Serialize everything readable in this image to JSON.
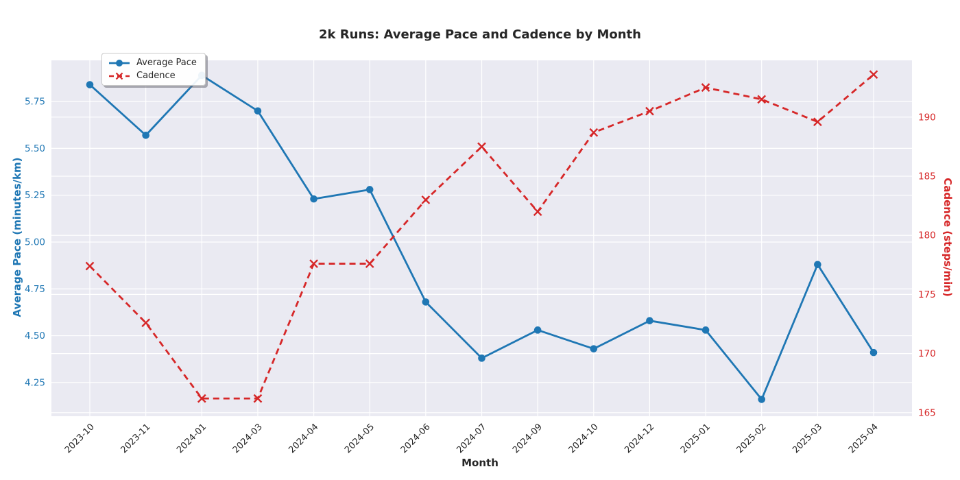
{
  "chart": {
    "title": "2k Runs: Average Pace and Cadence by Month",
    "xlabel": "Month",
    "ylabel_left": "Average Pace (minutes/km)",
    "ylabel_right": "Cadence (steps/min)"
  },
  "style": {
    "plot_bg": "#eaeaf2",
    "grid_color": "#ffffff",
    "pace_color": "#1f77b4",
    "cadence_color": "#d62728",
    "text_color": "#262626"
  },
  "chart_data": {
    "type": "line",
    "title": "2k Runs: Average Pace and Cadence by Month",
    "xlabel": "Month",
    "categories": [
      "2023-10",
      "2023-11",
      "2024-01",
      "2024-03",
      "2024-04",
      "2024-05",
      "2024-06",
      "2024-07",
      "2024-09",
      "2024-10",
      "2024-12",
      "2025-01",
      "2025-02",
      "2025-03",
      "2025-04"
    ],
    "series": [
      {
        "name": "Average Pace",
        "axis": "left",
        "color": "#1f77b4",
        "line_style": "solid",
        "marker": "circle",
        "ylabel": "Average Pace (minutes/km)",
        "values": [
          5.84,
          5.57,
          5.89,
          5.7,
          5.23,
          5.28,
          4.68,
          4.38,
          4.53,
          4.43,
          4.58,
          4.53,
          4.16,
          4.88,
          4.41
        ]
      },
      {
        "name": "Cadence",
        "axis": "right",
        "color": "#d62728",
        "line_style": "dashed",
        "marker": "x",
        "ylabel": "Cadence (steps/min)",
        "values": [
          177.4,
          172.6,
          166.2,
          166.2,
          177.6,
          177.6,
          183.0,
          187.5,
          182.0,
          188.7,
          190.5,
          192.5,
          191.5,
          189.6,
          193.6
        ]
      }
    ],
    "left_ticks": [
      "5.75",
      "5.50",
      "5.25",
      "5.00",
      "4.75",
      "4.50",
      "4.25"
    ],
    "right_ticks": [
      "190",
      "185",
      "180",
      "175",
      "170",
      "165"
    ],
    "left_ylim": [
      4.07,
      5.97
    ],
    "right_ylim": [
      164.7,
      194.8
    ],
    "grid": true,
    "legend_position": "upper-left"
  }
}
